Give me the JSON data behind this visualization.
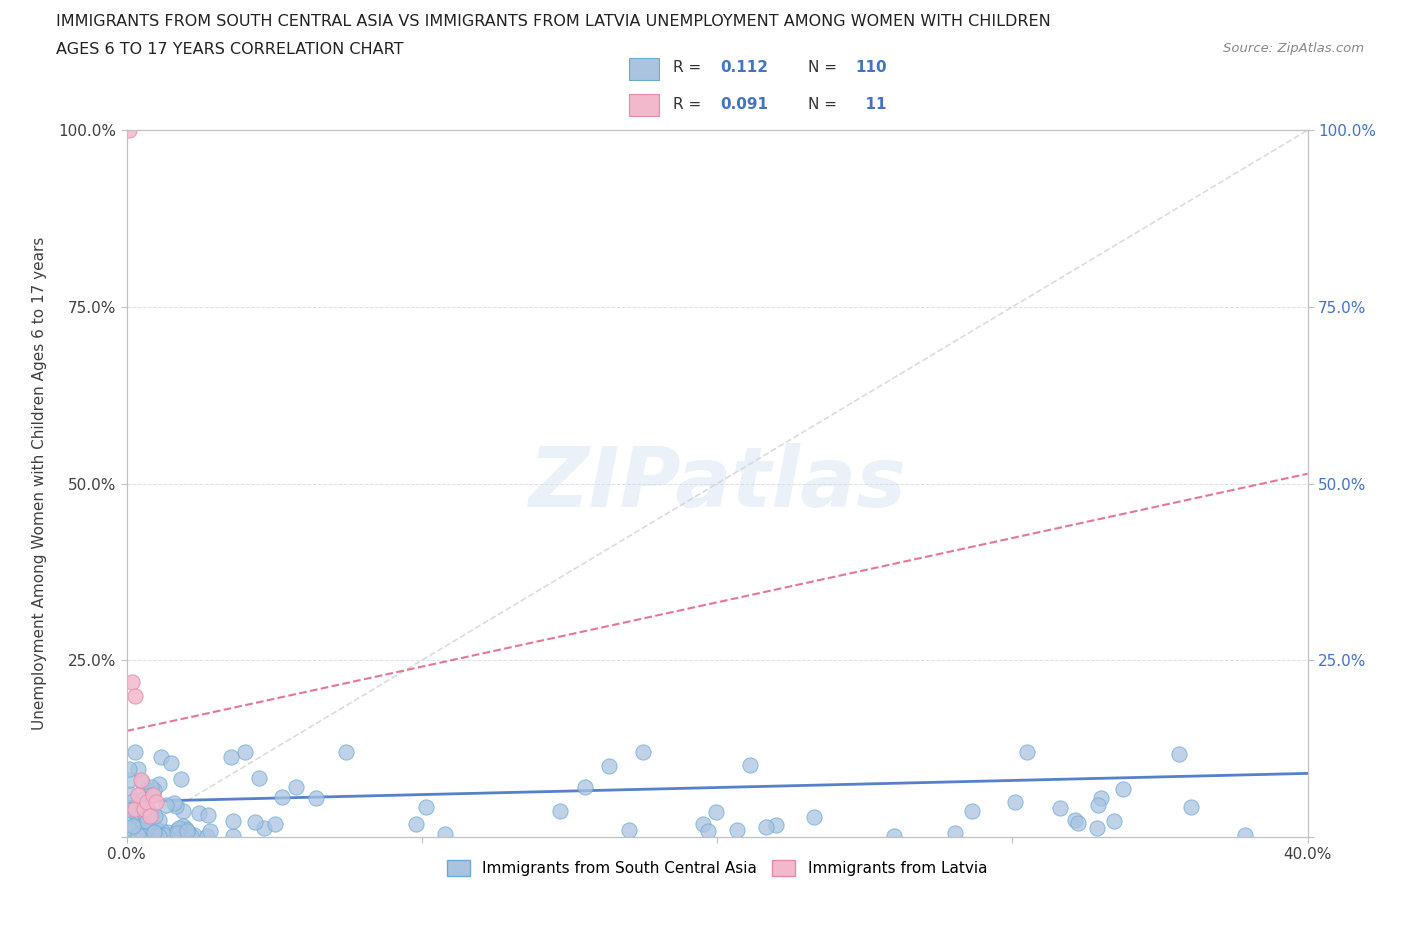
{
  "title_line1": "IMMIGRANTS FROM SOUTH CENTRAL ASIA VS IMMIGRANTS FROM LATVIA UNEMPLOYMENT AMONG WOMEN WITH CHILDREN",
  "title_line2": "AGES 6 TO 17 YEARS CORRELATION CHART",
  "source_text": "Source: ZipAtlas.com",
  "ylabel": "Unemployment Among Women with Children Ages 6 to 17 years",
  "xlim": [
    0.0,
    0.4
  ],
  "ylim": [
    0.0,
    1.0
  ],
  "xticks": [
    0.0,
    0.1,
    0.2,
    0.3,
    0.4
  ],
  "yticks": [
    0.0,
    0.25,
    0.5,
    0.75,
    1.0
  ],
  "xtick_labels": [
    "0.0%",
    "",
    "",
    "",
    "40.0%"
  ],
  "ytick_labels_left": [
    "",
    "25.0%",
    "50.0%",
    "75.0%",
    "100.0%"
  ],
  "ytick_labels_right": [
    "",
    "25.0%",
    "50.0%",
    "75.0%",
    "100.0%"
  ],
  "blue_color": "#aac4e0",
  "pink_color": "#f2b8cc",
  "blue_edge": "#6aaad4",
  "pink_edge": "#e888aa",
  "trend_blue_color": "#4472c4",
  "trend_pink_color": "#e06080",
  "trend_gray_color": "#cccccc",
  "R_blue": 0.112,
  "N_blue": 110,
  "R_pink": 0.091,
  "N_pink": 11,
  "legend_label_blue": "Immigrants from South Central Asia",
  "legend_label_pink": "Immigrants from Latvia",
  "watermark": "ZIPatlas",
  "background_color": "#ffffff",
  "label_color_blue": "#4472c4",
  "label_color_dark": "#404040",
  "grid_color": "#d8dce8",
  "spine_color": "#c0c0c0"
}
